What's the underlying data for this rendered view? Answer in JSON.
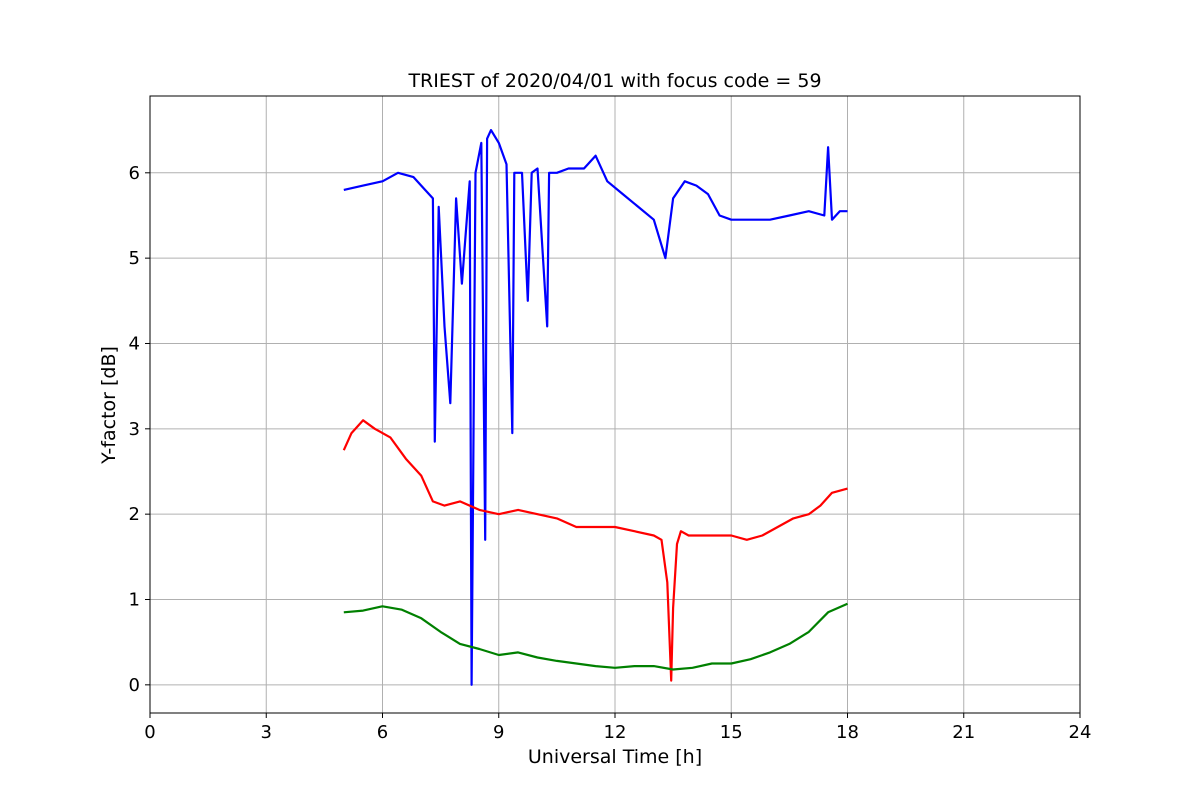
{
  "chart_data": {
    "type": "line",
    "title": "TRIEST of 2020/04/01 with focus code = 59",
    "xlabel": "Universal Time [h]",
    "ylabel": "Y-factor [dB]",
    "xlim": [
      0,
      24
    ],
    "ylim": [
      -0.33,
      6.9
    ],
    "xticks": [
      0,
      3,
      6,
      9,
      12,
      15,
      18,
      21,
      24
    ],
    "yticks": [
      0,
      1,
      2,
      3,
      4,
      5,
      6
    ],
    "grid": true,
    "legend": "none",
    "series": [
      {
        "color": "#0000ff",
        "x": [
          5.0,
          5.5,
          6.0,
          6.4,
          6.8,
          7.1,
          7.3,
          7.35,
          7.45,
          7.6,
          7.75,
          7.9,
          8.05,
          8.25,
          8.3,
          8.4,
          8.55,
          8.65,
          8.7,
          8.8,
          9.0,
          9.2,
          9.35,
          9.4,
          9.6,
          9.75,
          9.85,
          10.0,
          10.25,
          10.3,
          10.5,
          10.8,
          11.2,
          11.5,
          11.8,
          12.2,
          12.6,
          13.0,
          13.3,
          13.5,
          13.8,
          14.1,
          14.4,
          14.7,
          15.0,
          15.5,
          16.0,
          16.5,
          17.0,
          17.4,
          17.5,
          17.6,
          17.8,
          18.0
        ],
        "y": [
          5.8,
          5.85,
          5.9,
          6.0,
          5.95,
          5.8,
          5.7,
          2.85,
          5.6,
          4.2,
          3.3,
          5.7,
          4.7,
          5.9,
          0.0,
          6.0,
          6.35,
          1.7,
          6.4,
          6.5,
          6.35,
          6.1,
          2.95,
          6.0,
          6.0,
          4.5,
          6.0,
          6.05,
          4.2,
          6.0,
          6.0,
          6.05,
          6.05,
          6.2,
          5.9,
          5.75,
          5.6,
          5.45,
          5.0,
          5.7,
          5.9,
          5.85,
          5.75,
          5.5,
          5.45,
          5.45,
          5.45,
          5.5,
          5.55,
          5.5,
          6.3,
          5.45,
          5.55,
          5.55
        ]
      },
      {
        "color": "#ff0000",
        "x": [
          5.0,
          5.2,
          5.5,
          5.8,
          6.2,
          6.6,
          7.0,
          7.3,
          7.6,
          8.0,
          8.5,
          9.0,
          9.5,
          10.0,
          10.5,
          11.0,
          11.5,
          12.0,
          12.5,
          13.0,
          13.2,
          13.35,
          13.45,
          13.5,
          13.6,
          13.7,
          13.9,
          14.2,
          14.6,
          15.0,
          15.4,
          15.8,
          16.2,
          16.6,
          17.0,
          17.3,
          17.6,
          18.0
        ],
        "y": [
          2.75,
          2.95,
          3.1,
          3.0,
          2.9,
          2.65,
          2.45,
          2.15,
          2.1,
          2.15,
          2.05,
          2.0,
          2.05,
          2.0,
          1.95,
          1.85,
          1.85,
          1.85,
          1.8,
          1.75,
          1.7,
          1.2,
          0.05,
          0.9,
          1.65,
          1.8,
          1.75,
          1.75,
          1.75,
          1.75,
          1.7,
          1.75,
          1.85,
          1.95,
          2.0,
          2.1,
          2.25,
          2.3
        ]
      },
      {
        "color": "#008000",
        "x": [
          5.0,
          5.5,
          6.0,
          6.5,
          7.0,
          7.5,
          8.0,
          8.5,
          9.0,
          9.5,
          10.0,
          10.5,
          11.0,
          11.5,
          12.0,
          12.5,
          13.0,
          13.5,
          14.0,
          14.5,
          15.0,
          15.5,
          16.0,
          16.5,
          17.0,
          17.5,
          18.0
        ],
        "y": [
          0.85,
          0.87,
          0.92,
          0.88,
          0.78,
          0.62,
          0.48,
          0.42,
          0.35,
          0.38,
          0.32,
          0.28,
          0.25,
          0.22,
          0.2,
          0.22,
          0.22,
          0.18,
          0.2,
          0.25,
          0.25,
          0.3,
          0.38,
          0.48,
          0.62,
          0.85,
          0.95
        ]
      }
    ]
  }
}
